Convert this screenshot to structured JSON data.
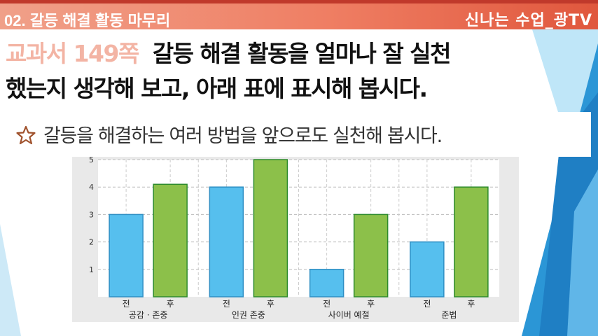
{
  "header": {
    "title": "02. 갈등 해결 활동 마무리",
    "brand": "신나는 수업_광TV"
  },
  "instruction": {
    "page_ref": "교과서 149쪽",
    "line1_rest": "갈등 해결 활동을 얼마나 잘 실천",
    "line2": "했는지 생각해 보고, 아래 표에 표시해 봅시다."
  },
  "hint": {
    "icon": "star-icon",
    "text": "갈등을 해결하는 여러 방법을 앞으로도 실천해 봅시다."
  },
  "colors": {
    "header": "#ef7e63",
    "before_bar": "#56bfee",
    "after_bar": "#8cc04a",
    "page_ref": "#f3b4a4"
  },
  "chart_data": {
    "type": "bar",
    "categories": [
      "공감 · 존중",
      "인권 존중",
      "사이버 예절",
      "준법"
    ],
    "sub_labels": [
      "전",
      "후"
    ],
    "series": [
      {
        "values": [
          3,
          4,
          1,
          2
        ]
      },
      {
        "values": [
          4.1,
          5,
          3,
          4
        ]
      }
    ],
    "yticks": [
      "1",
      "2",
      "3",
      "4",
      "5"
    ],
    "ylim": [
      0,
      5
    ],
    "grid": true
  }
}
